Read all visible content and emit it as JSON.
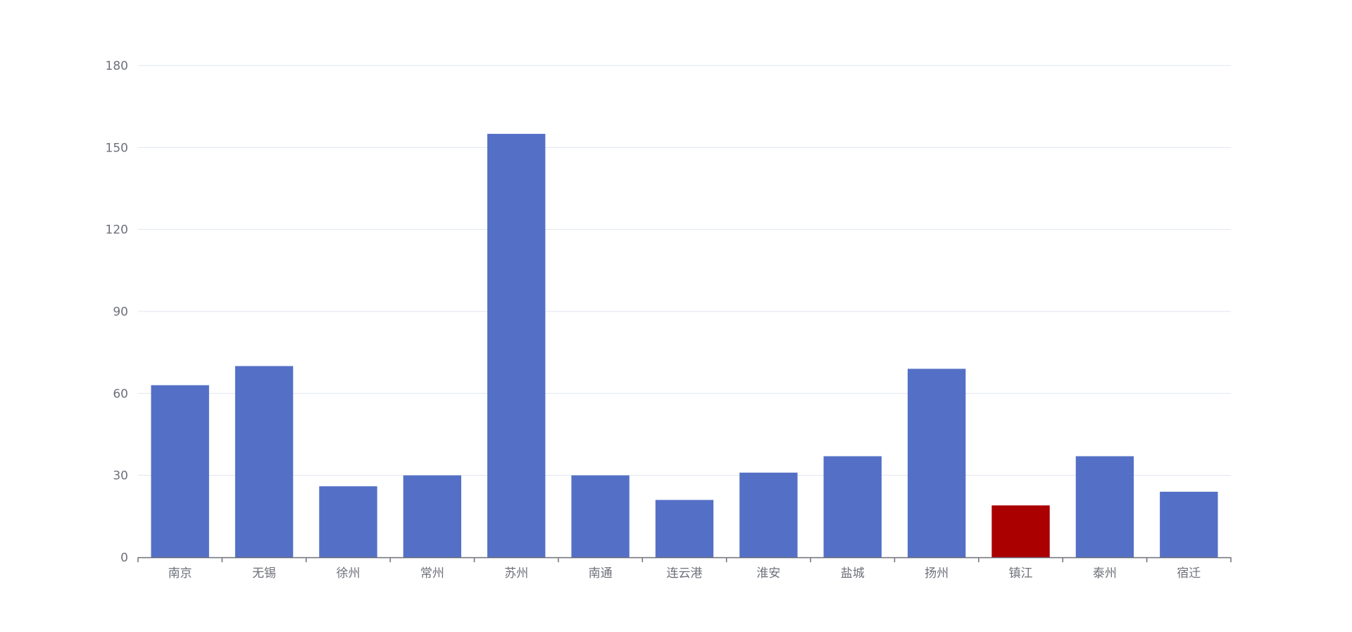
{
  "chart_data": {
    "type": "bar",
    "title": "",
    "xlabel": "",
    "ylabel": "",
    "categories": [
      "南京",
      "无锡",
      "徐州",
      "常州",
      "苏州",
      "南通",
      "连云港",
      "淮安",
      "盐城",
      "扬州",
      "镇江",
      "泰州",
      "宿迁"
    ],
    "values": [
      63,
      70,
      26,
      30,
      155,
      30,
      21,
      31,
      37,
      69,
      19,
      37,
      24
    ],
    "highlight_category": "镇江",
    "ylim": [
      0,
      180
    ],
    "yticks": [
      0,
      30,
      60,
      90,
      120,
      150,
      180
    ],
    "grid": true,
    "legend": "none",
    "colors": {
      "bar": "#5470c6",
      "highlight": "#aa0000",
      "grid": "#e0e6f1",
      "axis": "#6e7079",
      "label": "#6e7079"
    }
  }
}
